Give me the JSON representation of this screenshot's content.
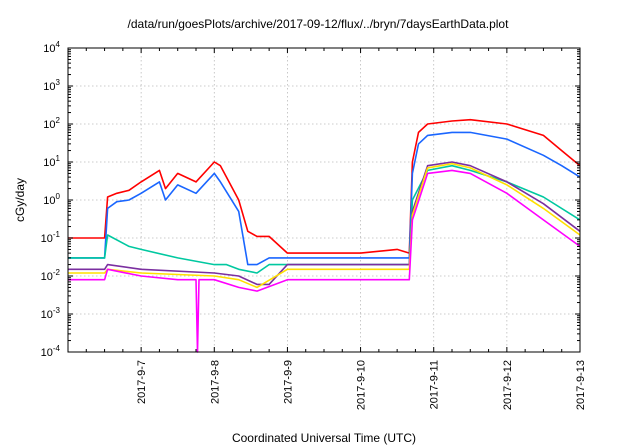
{
  "chart_data": {
    "type": "line",
    "title": "/data/run/goesPlots/archive/2017-09-12/flux/../bryn/7daysEarthData.plot",
    "xlabel": "Coordinated Universal Time (UTC)",
    "ylabel": "cGy/day",
    "y_scale": "log",
    "ylim": [
      "1e-4",
      "1e4"
    ],
    "xlim": [
      "2017-09-06 00:00",
      "2017-09-13 00:00"
    ],
    "grid": true,
    "legend": "none",
    "x_ticks": [
      "2017-9-7",
      "2017-9-8",
      "2017-9-9",
      "2017-9-10",
      "2017-9-11",
      "2017-9-12",
      "2017-9-13"
    ],
    "y_ticks": [
      {
        "base": "10",
        "exp": "-4"
      },
      {
        "base": "10",
        "exp": "-3"
      },
      {
        "base": "10",
        "exp": "-2"
      },
      {
        "base": "10",
        "exp": "-1"
      },
      {
        "base": "10",
        "exp": "0"
      },
      {
        "base": "10",
        "exp": "1"
      },
      {
        "base": "10",
        "exp": "2"
      },
      {
        "base": "10",
        "exp": "3"
      },
      {
        "base": "10",
        "exp": "4"
      }
    ],
    "series": [
      {
        "color": "#ff0000",
        "x": [
          "2017-09-06 00:00",
          "2017-09-06 12:00",
          "2017-09-06 13:00",
          "2017-09-06 16:00",
          "2017-09-06 20:00",
          "2017-09-07 00:00",
          "2017-09-07 06:00",
          "2017-09-07 08:00",
          "2017-09-07 12:00",
          "2017-09-07 18:00",
          "2017-09-08 00:00",
          "2017-09-08 02:00",
          "2017-09-08 08:00",
          "2017-09-08 11:00",
          "2017-09-08 14:00",
          "2017-09-08 18:00",
          "2017-09-09 00:00",
          "2017-09-09 12:00",
          "2017-09-10 00:00",
          "2017-09-10 12:00",
          "2017-09-10 16:00",
          "2017-09-10 17:00",
          "2017-09-10 19:00",
          "2017-09-10 22:00",
          "2017-09-11 06:00",
          "2017-09-11 12:00",
          "2017-09-12 00:00",
          "2017-09-12 12:00",
          "2017-09-12 18:00",
          "2017-09-13 00:00"
        ],
        "y": [
          0.1,
          0.1,
          1.2,
          1.5,
          1.8,
          3,
          6,
          2,
          5,
          3,
          10,
          8,
          1,
          0.15,
          0.11,
          0.11,
          0.04,
          0.04,
          0.04,
          0.05,
          0.04,
          10,
          60,
          100,
          120,
          130,
          100,
          50,
          20,
          8
        ]
      },
      {
        "color": "#1a66ff",
        "x": [
          "2017-09-06 00:00",
          "2017-09-06 12:00",
          "2017-09-06 13:00",
          "2017-09-06 16:00",
          "2017-09-06 20:00",
          "2017-09-07 00:00",
          "2017-09-07 06:00",
          "2017-09-07 08:00",
          "2017-09-07 12:00",
          "2017-09-07 18:00",
          "2017-09-08 00:00",
          "2017-09-08 02:00",
          "2017-09-08 08:00",
          "2017-09-08 11:00",
          "2017-09-08 14:00",
          "2017-09-08 18:00",
          "2017-09-09 00:00",
          "2017-09-09 12:00",
          "2017-09-10 00:00",
          "2017-09-10 12:00",
          "2017-09-10 16:00",
          "2017-09-10 17:00",
          "2017-09-10 19:00",
          "2017-09-10 22:00",
          "2017-09-11 06:00",
          "2017-09-11 12:00",
          "2017-09-12 00:00",
          "2017-09-12 12:00",
          "2017-09-12 18:00",
          "2017-09-13 00:00"
        ],
        "y": [
          0.03,
          0.03,
          0.6,
          0.9,
          1.0,
          1.5,
          3,
          1.0,
          2.5,
          1.5,
          5,
          3,
          0.5,
          0.02,
          0.02,
          0.03,
          0.03,
          0.03,
          0.03,
          0.03,
          0.03,
          5,
          30,
          50,
          60,
          60,
          40,
          15,
          8,
          4
        ]
      },
      {
        "color": "#00c8a0",
        "x": [
          "2017-09-06 00:00",
          "2017-09-06 12:00",
          "2017-09-06 13:00",
          "2017-09-06 20:00",
          "2017-09-07 00:00",
          "2017-09-07 12:00",
          "2017-09-08 00:00",
          "2017-09-08 04:00",
          "2017-09-08 08:00",
          "2017-09-08 14:00",
          "2017-09-08 18:00",
          "2017-09-09 00:00",
          "2017-09-10 00:00",
          "2017-09-10 16:00",
          "2017-09-10 17:00",
          "2017-09-10 22:00",
          "2017-09-11 06:00",
          "2017-09-11 12:00",
          "2017-09-12 00:00",
          "2017-09-12 12:00",
          "2017-09-13 00:00"
        ],
        "y": [
          0.03,
          0.03,
          0.12,
          0.06,
          0.05,
          0.03,
          0.02,
          0.02,
          0.015,
          0.012,
          0.02,
          0.02,
          0.02,
          0.02,
          1,
          6,
          8,
          6,
          3,
          1.2,
          0.3
        ]
      },
      {
        "color": "#7b2fa0",
        "x": [
          "2017-09-06 00:00",
          "2017-09-06 12:00",
          "2017-09-06 13:00",
          "2017-09-07 00:00",
          "2017-09-08 00:00",
          "2017-09-08 08:00",
          "2017-09-08 14:00",
          "2017-09-08 18:00",
          "2017-09-09 00:00",
          "2017-09-10 00:00",
          "2017-09-10 16:00",
          "2017-09-10 17:00",
          "2017-09-10 22:00",
          "2017-09-11 06:00",
          "2017-09-11 12:00",
          "2017-09-12 00:00",
          "2017-09-12 12:00",
          "2017-09-13 00:00"
        ],
        "y": [
          0.015,
          0.015,
          0.02,
          0.015,
          0.012,
          0.01,
          0.006,
          0.006,
          0.02,
          0.02,
          0.02,
          0.5,
          8,
          10,
          8,
          3,
          0.8,
          0.15
        ]
      },
      {
        "color": "#ffe000",
        "x": [
          "2017-09-06 00:00",
          "2017-09-06 12:00",
          "2017-09-06 13:00",
          "2017-09-07 00:00",
          "2017-09-08 00:00",
          "2017-09-08 08:00",
          "2017-09-08 14:00",
          "2017-09-09 00:00",
          "2017-09-10 00:00",
          "2017-09-10 16:00",
          "2017-09-10 17:00",
          "2017-09-10 22:00",
          "2017-09-11 06:00",
          "2017-09-11 12:00",
          "2017-09-12 00:00",
          "2017-09-12 12:00",
          "2017-09-13 00:00"
        ],
        "y": [
          0.012,
          0.012,
          0.015,
          0.012,
          0.01,
          0.008,
          0.005,
          0.015,
          0.015,
          0.015,
          0.4,
          7,
          9,
          7,
          2.5,
          0.6,
          0.12
        ]
      },
      {
        "color": "#ff00ff",
        "x": [
          "2017-09-06 00:00",
          "2017-09-06 12:00",
          "2017-09-06 13:00",
          "2017-09-07 00:00",
          "2017-09-07 12:00",
          "2017-09-07 18:00",
          "2017-09-07 18:30",
          "2017-09-07 19:00",
          "2017-09-08 00:00",
          "2017-09-08 08:00",
          "2017-09-08 14:00",
          "2017-09-09 00:00",
          "2017-09-10 00:00",
          "2017-09-10 16:00",
          "2017-09-10 17:00",
          "2017-09-10 22:00",
          "2017-09-11 06:00",
          "2017-09-11 12:00",
          "2017-09-12 00:00",
          "2017-09-12 12:00",
          "2017-09-13 00:00"
        ],
        "y": [
          0.008,
          0.008,
          0.015,
          0.01,
          0.008,
          0.008,
          0.0001,
          0.008,
          0.008,
          0.005,
          0.004,
          0.008,
          0.008,
          0.008,
          0.3,
          5,
          6,
          5,
          1.5,
          0.3,
          0.06
        ]
      }
    ]
  }
}
